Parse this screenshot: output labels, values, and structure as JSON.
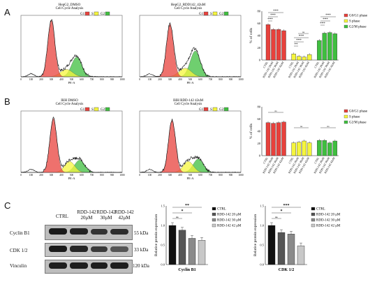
{
  "panels": {
    "A": "A",
    "B": "B",
    "C": "C"
  },
  "histograms": [
    {
      "title1": "HepG2_DMSO",
      "title2": "Cell Cycle Analysis",
      "xlabel": "PE-A",
      "ticks": [
        "0",
        "100",
        "200",
        "300",
        "400",
        "500",
        "600",
        "700",
        "800",
        "900",
        "1000"
      ]
    },
    {
      "title1": "HepG2_RDD142_42uM",
      "title2": "Cell Cycle Analysis",
      "xlabel": "PE-A",
      "ticks": [
        "0",
        "100",
        "200",
        "300",
        "400",
        "500",
        "600",
        "700",
        "800",
        "900",
        "1000"
      ]
    },
    {
      "title1": "IHH DMSO",
      "title2": "Cell Cycle Analysis",
      "xlabel": "PE-A",
      "ticks": [
        "0",
        "100",
        "200",
        "300",
        "400",
        "500",
        "600",
        "700",
        "800",
        "900",
        "1000"
      ]
    },
    {
      "title1": "IHH RDD-142 42uM",
      "title2": "Cell Cycle Analysis",
      "xlabel": "PE-A",
      "ticks": [
        "0",
        "100",
        "200",
        "300",
        "400",
        "500",
        "600",
        "700",
        "800",
        "900",
        "1000"
      ]
    }
  ],
  "gate_legend": {
    "g1": "G1",
    "s": "S",
    "g2": "G2"
  },
  "colors": {
    "red": "#e8413c",
    "yellow": "#f5f53c",
    "green": "#3fbf3f",
    "black": "#111111",
    "dgray": "#555555",
    "mgray": "#8a8a8a",
    "lgray": "#c8c8c8"
  },
  "bar_legend": [
    "G0/G1 phase",
    "S phase",
    "G2/M phase"
  ],
  "bar_ylabel": "% of cells",
  "bar_categories": [
    "CTRL",
    "RDD-142 20uM",
    "RDD-142 30uM",
    "RDD-142 42uM"
  ],
  "wb_lanes": [
    "CTRL",
    "RDD-142\n20μM",
    "RDD-142\n30μM",
    "RDD-142\n42μM"
  ],
  "wb_rows": [
    {
      "name": "Cyclin B1",
      "kda": "55 kDa"
    },
    {
      "name": "CDK 1/2",
      "kda": "33 kDa"
    },
    {
      "name": "Vinculin",
      "kda": "120 kDa"
    }
  ],
  "wb_legend": [
    "CTRL",
    "RDD-142 20 μM",
    "RDD-142 30 μM",
    "RDD-142 42 μM"
  ],
  "wb_ylabel": "Relative protein expression",
  "chart_data": [
    {
      "type": "bar",
      "title": "",
      "ylabel": "% of cells",
      "ylim": [
        0,
        80
      ],
      "yticks": [
        "0",
        "20",
        "40",
        "60",
        "80"
      ],
      "groups": [
        "G0/G1 phase",
        "S phase",
        "G2/M phase"
      ],
      "categories": [
        "CTRL",
        "RDD-142 20uM",
        "RDD-142 30uM",
        "RDD-142 42uM"
      ],
      "series": [
        {
          "name": "G0/G1 phase",
          "values": [
            58,
            50,
            50,
            48
          ]
        },
        {
          "name": "S phase",
          "values": [
            10,
            6,
            5,
            9
          ]
        },
        {
          "name": "G2/M phase",
          "values": [
            32,
            44,
            45,
            43
          ]
        }
      ],
      "significance": [
        "***",
        "***",
        "***",
        "***",
        "***",
        "**",
        "***",
        "***",
        "***",
        "ns"
      ]
    },
    {
      "type": "bar",
      "title": "",
      "ylabel": "% of cells",
      "ylim": [
        0,
        80
      ],
      "yticks": [
        "0",
        "20",
        "40",
        "60",
        "80"
      ],
      "groups": [
        "G0/G1 phase",
        "S phase",
        "G2/M phase"
      ],
      "categories": [
        "CTRL",
        "RDD-142 20uM",
        "RDD-142 30uM",
        "RDD-142 42uM"
      ],
      "series": [
        {
          "name": "G0/G1 phase",
          "values": [
            54,
            53,
            54,
            55
          ]
        },
        {
          "name": "S phase",
          "values": [
            21,
            22,
            24,
            21
          ]
        },
        {
          "name": "G2/M phase",
          "values": [
            25,
            25,
            21,
            24
          ]
        }
      ],
      "significance": [
        "ns",
        "ns",
        "ns"
      ]
    },
    {
      "type": "bar",
      "title": "Cyclin B1",
      "ylabel": "Relative protein expression",
      "ylim": [
        0,
        1.5
      ],
      "yticks": [
        "0.0",
        "0.5",
        "1.0",
        "1.5"
      ],
      "categories": [
        "CTRL",
        "RDD-142 20 μM",
        "RDD-142 30 μM",
        "RDD-142 42 μM"
      ],
      "values": [
        1.0,
        0.88,
        0.67,
        0.62
      ],
      "significance": [
        "**",
        "*",
        "ns"
      ]
    },
    {
      "type": "bar",
      "title": "CDK 1/2",
      "ylabel": "Relative protein expression",
      "ylim": [
        0,
        1.5
      ],
      "yticks": [
        "0.0",
        "0.5",
        "1.0",
        "1.5"
      ],
      "categories": [
        "CTRL",
        "RDD-142 20 μM",
        "RDD-142 30 μM",
        "RDD-142 42 μM"
      ],
      "values": [
        1.0,
        0.82,
        0.78,
        0.48
      ],
      "significance": [
        "***",
        "*",
        "ns"
      ]
    }
  ]
}
